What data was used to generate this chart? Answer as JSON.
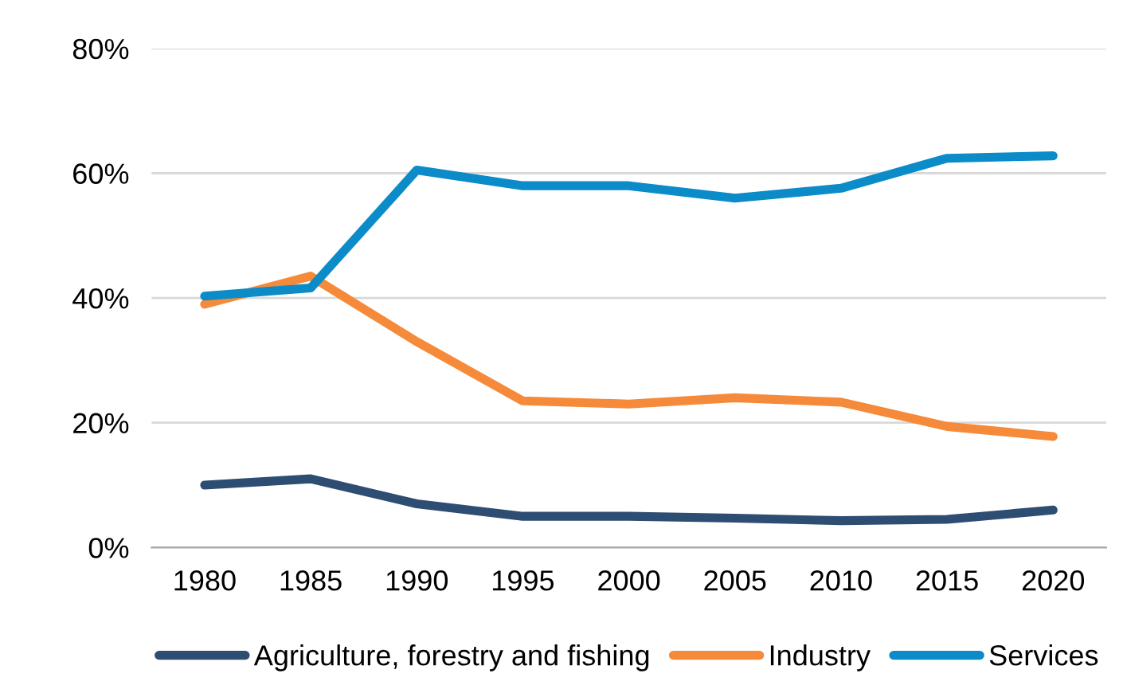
{
  "chart_data": {
    "type": "line",
    "categories": [
      "1980",
      "1985",
      "1990",
      "1995",
      "2000",
      "2005",
      "2010",
      "2015",
      "2020"
    ],
    "series": [
      {
        "name": "Agriculture, forestry and fishing",
        "color": "#2e4d73",
        "values": [
          10,
          11,
          7,
          5,
          5,
          4.7,
          4.3,
          4.5,
          6
        ]
      },
      {
        "name": "Industry",
        "color": "#f58b3a",
        "values": [
          39,
          43.5,
          33,
          23.5,
          23,
          24,
          23.3,
          19.4,
          17.8
        ]
      },
      {
        "name": "Services",
        "color": "#0b8cc8",
        "values": [
          40.3,
          41.6,
          60.5,
          58,
          58,
          56,
          57.6,
          62.4,
          62.8
        ]
      }
    ],
    "ylim": [
      0,
      80
    ],
    "yticks": [
      {
        "value": 0,
        "label": "0%"
      },
      {
        "value": 20,
        "label": "20%"
      },
      {
        "value": 40,
        "label": "40%"
      },
      {
        "value": 60,
        "label": "60%"
      },
      {
        "value": 80,
        "label": "80%"
      }
    ],
    "grid": "y",
    "legend": "bottom",
    "marker": "none",
    "line_style": "solid"
  }
}
